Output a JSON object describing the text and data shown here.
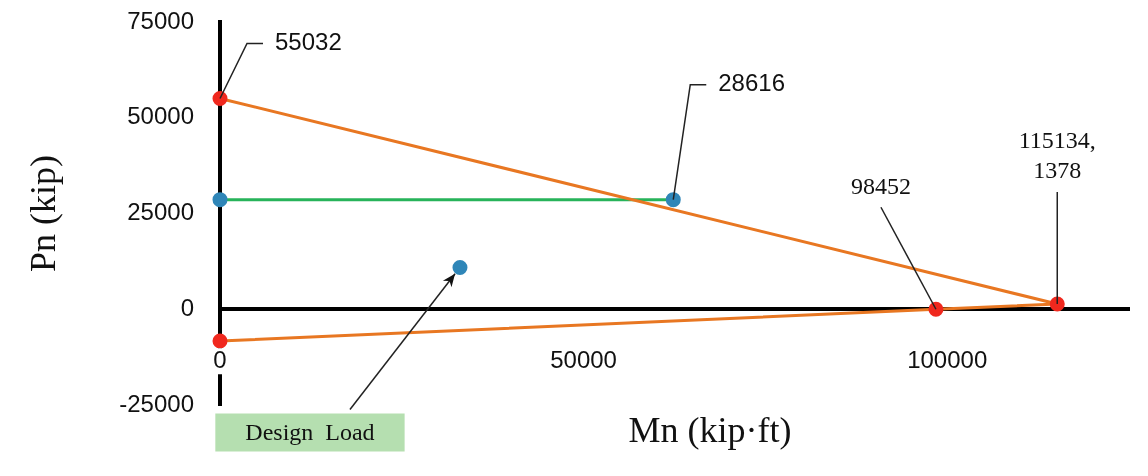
{
  "chart_data": {
    "type": "line",
    "xlabel": "Mn (kip·ft)",
    "ylabel": "Pn (kip)",
    "xlim": [
      0,
      125000
    ],
    "ylim": [
      -25000,
      75000
    ],
    "xticks": [
      0,
      50000,
      100000
    ],
    "yticks": [
      -25000,
      0,
      25000,
      50000,
      75000
    ],
    "grid": false,
    "legend": false,
    "marker": "circle",
    "series": [
      {
        "x": [
          0,
          115134,
          98452,
          0
        ],
        "values": [
          55032,
          1378,
          0,
          -8300
        ],
        "color": "#e87722",
        "colors": [
          "#f0281e",
          "#f0281e",
          "#f0281e",
          "#f0281e"
        ]
      },
      {
        "x": [
          0,
          62330
        ],
        "values": [
          28616,
          28616
        ],
        "color": "#27b35a",
        "colors": [
          "#2f86b8",
          "#2f86b8"
        ]
      },
      {
        "type": "scatter",
        "x": [
          33000
        ],
        "values": [
          10900
        ],
        "color": "#2f86b8"
      }
    ],
    "annotations": [
      {
        "text": "55032",
        "x": 0,
        "y": 55032
      },
      {
        "text": "28616",
        "x": 62330,
        "y": 28616
      },
      {
        "text": "98452",
        "x": 98452,
        "y": 0
      },
      {
        "text": "115134, 1378",
        "x": 115134,
        "y": 1378
      },
      {
        "text": "Design  Load",
        "x": 33000,
        "y": 10900
      }
    ]
  }
}
